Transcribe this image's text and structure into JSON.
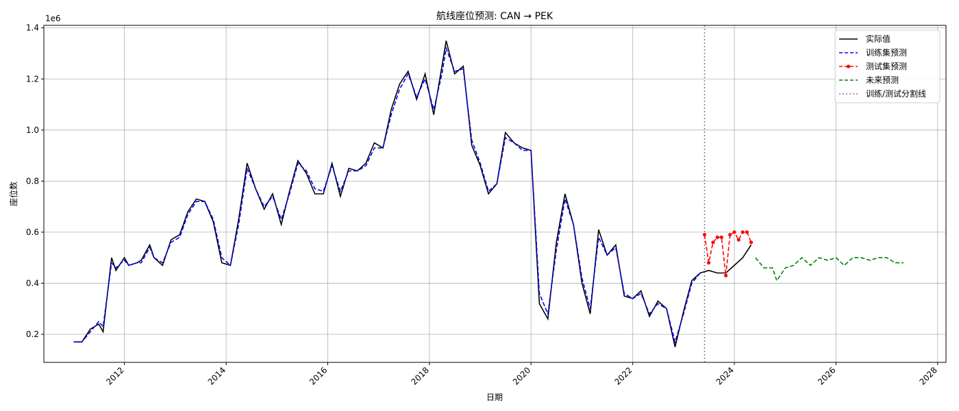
{
  "chart_data": {
    "type": "line",
    "title": "航线座位预测: CAN → PEK",
    "xlabel": "日期",
    "ylabel": "座位数",
    "y_offset_label": "1e6",
    "x_range": [
      "2010-06-01",
      "2028-03-01"
    ],
    "ylim": [
      0.09,
      1.41
    ],
    "x_ticks": [
      "2012",
      "2014",
      "2016",
      "2018",
      "2020",
      "2022",
      "2024",
      "2026",
      "2028"
    ],
    "y_ticks": [
      "0.2",
      "0.4",
      "0.6",
      "0.8",
      "1.0",
      "1.2",
      "1.4"
    ],
    "grid": true,
    "legend_position": "top-right",
    "split_line_date": "2023-06-01",
    "series": [
      {
        "name": "实际值",
        "color": "#000000",
        "style": "solid",
        "x": [
          "2011-01",
          "2011-03",
          "2011-05",
          "2011-07",
          "2011-08",
          "2011-10",
          "2011-11",
          "2012-01",
          "2012-02",
          "2012-04",
          "2012-05",
          "2012-07",
          "2012-08",
          "2012-10",
          "2012-12",
          "2013-02",
          "2013-04",
          "2013-06",
          "2013-08",
          "2013-10",
          "2013-12",
          "2014-02",
          "2014-04",
          "2014-06",
          "2014-08",
          "2014-10",
          "2014-12",
          "2015-02",
          "2015-04",
          "2015-06",
          "2015-08",
          "2015-10",
          "2015-12",
          "2016-02",
          "2016-04",
          "2016-06",
          "2016-08",
          "2016-10",
          "2016-12",
          "2017-02",
          "2017-04",
          "2017-06",
          "2017-08",
          "2017-10",
          "2017-12",
          "2018-02",
          "2018-04",
          "2018-05",
          "2018-07",
          "2018-09",
          "2018-11",
          "2019-01",
          "2019-03",
          "2019-05",
          "2019-07",
          "2019-09",
          "2019-11",
          "2020-01",
          "2020-03",
          "2020-05",
          "2020-07",
          "2020-09",
          "2020-11",
          "2021-01",
          "2021-03",
          "2021-05",
          "2021-07",
          "2021-09",
          "2021-11",
          "2022-01",
          "2022-03",
          "2022-05",
          "2022-07",
          "2022-09",
          "2022-11",
          "2023-01",
          "2023-03",
          "2023-05",
          "2023-07",
          "2023-09",
          "2023-11",
          "2024-01",
          "2024-03",
          "2024-05"
        ],
        "y": [
          0.17,
          0.17,
          0.22,
          0.24,
          0.21,
          0.5,
          0.45,
          0.5,
          0.47,
          0.48,
          0.49,
          0.55,
          0.5,
          0.47,
          0.57,
          0.59,
          0.68,
          0.73,
          0.72,
          0.64,
          0.48,
          0.47,
          0.65,
          0.87,
          0.77,
          0.69,
          0.75,
          0.63,
          0.76,
          0.88,
          0.83,
          0.75,
          0.75,
          0.87,
          0.74,
          0.85,
          0.84,
          0.87,
          0.95,
          0.93,
          1.08,
          1.18,
          1.23,
          1.12,
          1.22,
          1.06,
          1.25,
          1.35,
          1.22,
          1.25,
          0.94,
          0.86,
          0.75,
          0.79,
          0.99,
          0.95,
          0.93,
          0.92,
          0.32,
          0.26,
          0.56,
          0.75,
          0.63,
          0.4,
          0.28,
          0.61,
          0.51,
          0.55,
          0.35,
          0.34,
          0.37,
          0.27,
          0.33,
          0.3,
          0.15,
          0.29,
          0.41,
          0.44,
          0.45,
          0.44,
          0.44,
          0.47,
          0.5,
          0.55
        ]
      },
      {
        "name": "训练集预测",
        "color": "#0000ff",
        "style": "dashed",
        "x": [
          "2011-01",
          "2011-03",
          "2011-05",
          "2011-07",
          "2011-08",
          "2011-10",
          "2011-11",
          "2012-01",
          "2012-02",
          "2012-04",
          "2012-05",
          "2012-07",
          "2012-08",
          "2012-10",
          "2012-12",
          "2013-02",
          "2013-04",
          "2013-06",
          "2013-08",
          "2013-10",
          "2013-12",
          "2014-02",
          "2014-04",
          "2014-06",
          "2014-08",
          "2014-10",
          "2014-12",
          "2015-02",
          "2015-04",
          "2015-06",
          "2015-08",
          "2015-10",
          "2015-12",
          "2016-02",
          "2016-04",
          "2016-06",
          "2016-08",
          "2016-10",
          "2016-12",
          "2017-02",
          "2017-04",
          "2017-06",
          "2017-08",
          "2017-10",
          "2017-12",
          "2018-02",
          "2018-04",
          "2018-05",
          "2018-07",
          "2018-09",
          "2018-11",
          "2019-01",
          "2019-03",
          "2019-05",
          "2019-07",
          "2019-09",
          "2019-11",
          "2020-01",
          "2020-03",
          "2020-05",
          "2020-07",
          "2020-09",
          "2020-11",
          "2021-01",
          "2021-03",
          "2021-05",
          "2021-07",
          "2021-09",
          "2021-11",
          "2022-01",
          "2022-03",
          "2022-05",
          "2022-07",
          "2022-09",
          "2022-11",
          "2023-01",
          "2023-03",
          "2023-05"
        ],
        "y": [
          0.17,
          0.17,
          0.21,
          0.25,
          0.23,
          0.48,
          0.46,
          0.49,
          0.47,
          0.48,
          0.48,
          0.54,
          0.5,
          0.48,
          0.56,
          0.58,
          0.67,
          0.72,
          0.72,
          0.65,
          0.5,
          0.47,
          0.63,
          0.85,
          0.77,
          0.7,
          0.74,
          0.65,
          0.75,
          0.87,
          0.84,
          0.77,
          0.76,
          0.86,
          0.76,
          0.84,
          0.84,
          0.86,
          0.93,
          0.93,
          1.06,
          1.16,
          1.22,
          1.13,
          1.2,
          1.08,
          1.22,
          1.32,
          1.23,
          1.24,
          0.96,
          0.87,
          0.76,
          0.79,
          0.97,
          0.95,
          0.92,
          0.92,
          0.36,
          0.28,
          0.53,
          0.73,
          0.63,
          0.42,
          0.3,
          0.58,
          0.51,
          0.54,
          0.36,
          0.34,
          0.36,
          0.28,
          0.32,
          0.3,
          0.17,
          0.28,
          0.4,
          0.44
        ]
      },
      {
        "name": "测试集预测",
        "color": "#ff0000",
        "style": "dashed-markers",
        "x": [
          "2023-06",
          "2023-07",
          "2023-08",
          "2023-09",
          "2023-10",
          "2023-11",
          "2023-12",
          "2024-01",
          "2024-02",
          "2024-03",
          "2024-04",
          "2024-05"
        ],
        "y": [
          0.59,
          0.48,
          0.56,
          0.58,
          0.58,
          0.43,
          0.59,
          0.6,
          0.57,
          0.6,
          0.6,
          0.56
        ]
      },
      {
        "name": "未来预测",
        "color": "#008000",
        "style": "dashed",
        "x": [
          "2024-06",
          "2024-08",
          "2024-10",
          "2024-11",
          "2025-01",
          "2025-03",
          "2025-05",
          "2025-07",
          "2025-09",
          "2025-11",
          "2026-01",
          "2026-03",
          "2026-05",
          "2026-07",
          "2026-09",
          "2026-11",
          "2027-01",
          "2027-03",
          "2027-05"
        ],
        "y": [
          0.5,
          0.46,
          0.46,
          0.41,
          0.46,
          0.47,
          0.5,
          0.47,
          0.5,
          0.49,
          0.5,
          0.47,
          0.5,
          0.5,
          0.49,
          0.5,
          0.5,
          0.48,
          0.48
        ]
      }
    ],
    "split_series_name": "训练/测试分割线",
    "split_color": "#808080"
  }
}
